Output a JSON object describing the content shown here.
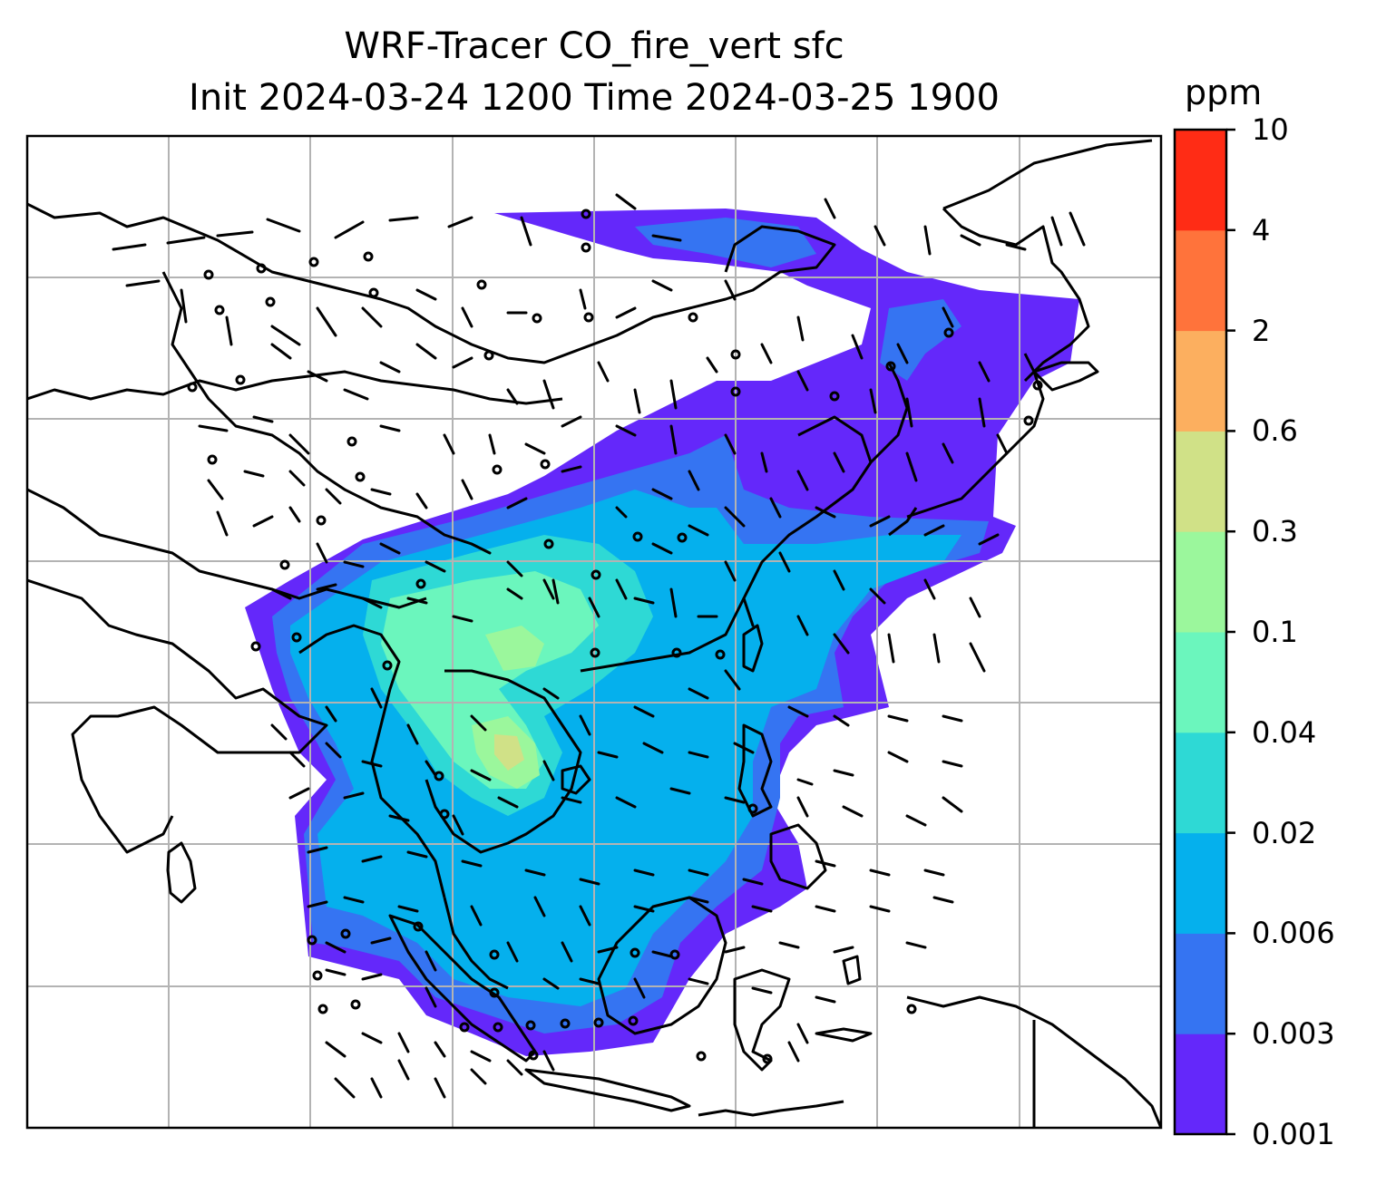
{
  "title": {
    "line1": "WRF-Tracer CO_fire_vert sfc",
    "line2": "Init 2024-03-24 1200 Time 2024-03-25 1900"
  },
  "colorbar": {
    "unit": "ppm",
    "levels": [
      "0.001",
      "0.003",
      "0.006",
      "0.02",
      "0.04",
      "0.1",
      "0.3",
      "0.6",
      "2",
      "4",
      "10"
    ],
    "colors": [
      "#6428fa",
      "#3574f2",
      "#05b0ed",
      "#2ed9d5",
      "#6bf6bd",
      "#9bf79c",
      "#d0e187",
      "#fcaf5f",
      "#ff733b",
      "#ff2c15"
    ]
  },
  "map": {
    "land_color": "#ffffff",
    "coastline_color": "#000000",
    "gridline_color": "#b3b3b3",
    "wind_barb_color": "#000000"
  }
}
